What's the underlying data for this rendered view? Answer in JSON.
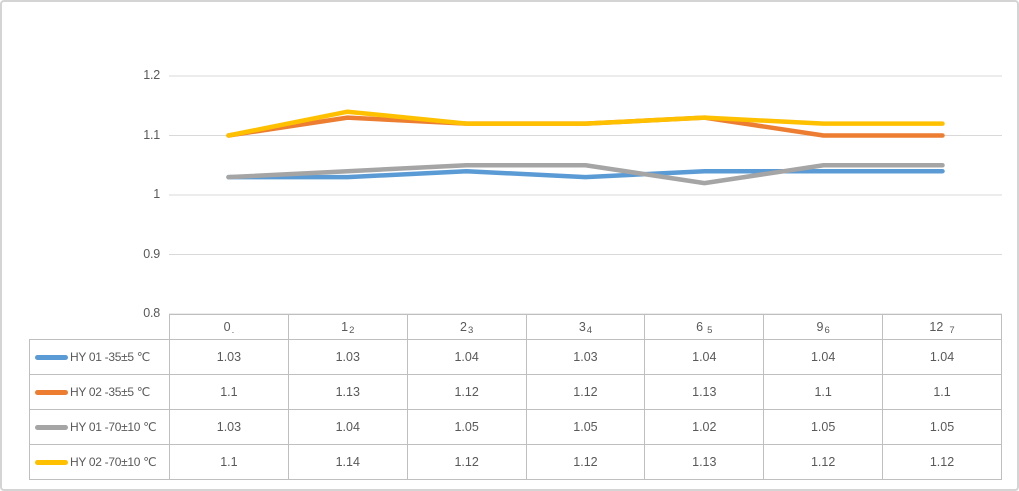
{
  "chart_data": {
    "type": "line",
    "title": "",
    "xlabel": "",
    "ylabel": "",
    "categories": [
      "0",
      "1",
      "2",
      "3",
      "6",
      "9",
      "12"
    ],
    "series": [
      {
        "name": "HY 01 -35±5 ℃",
        "color": "#5B9BD5",
        "values": [
          1.03,
          1.03,
          1.04,
          1.03,
          1.04,
          1.04,
          1.04
        ]
      },
      {
        "name": "HY 02 -35±5 ℃",
        "color": "#ED7D31",
        "values": [
          1.1,
          1.13,
          1.12,
          1.12,
          1.13,
          1.1,
          1.1
        ]
      },
      {
        "name": "HY 01 -70±10 ℃",
        "color": "#A5A5A5",
        "values": [
          1.03,
          1.04,
          1.05,
          1.05,
          1.02,
          1.05,
          1.05
        ]
      },
      {
        "name": "HY 02 -70±10 ℃",
        "color": "#FFC000",
        "values": [
          1.1,
          1.14,
          1.12,
          1.12,
          1.13,
          1.12,
          1.12
        ]
      }
    ],
    "y_axis": {
      "min": 0.8,
      "max": 1.2,
      "ticks": [
        {
          "label": "1.2",
          "value": 1.2
        },
        {
          "label": "1.1",
          "value": 1.1
        },
        {
          "label": "1",
          "value": 1.0
        },
        {
          "label": "0.9",
          "value": 0.9
        },
        {
          "label": "0.8",
          "value": 0.8
        }
      ]
    },
    "grid": true,
    "legend_position": "data-table-left-column"
  },
  "data_table": {
    "header_cells": [
      {
        "main": "0",
        "sub": ".",
        "gap": 1
      },
      {
        "main": "1",
        "sub": "2",
        "gap": 1
      },
      {
        "main": "2",
        "sub": "3",
        "gap": 1
      },
      {
        "main": "3",
        "sub": "4",
        "gap": 1
      },
      {
        "main": "6",
        "sub": "5",
        "gap": 4
      },
      {
        "main": "9",
        "sub": "6",
        "gap": 1
      },
      {
        "main": "12",
        "sub": "7",
        "gap": 6
      }
    ],
    "display_values": [
      [
        "1.03",
        "1.03",
        "1.04",
        "1.03",
        "1.04",
        "1.04",
        "1.04"
      ],
      [
        "1.1",
        "1.13",
        "1.12",
        "1.12",
        "1.13",
        "1.1",
        "1.1"
      ],
      [
        "1.03",
        "1.04",
        "1.05",
        "1.05",
        "1.02",
        "1.05",
        "1.05"
      ],
      [
        "1.1",
        "1.14",
        "1.12",
        "1.12",
        "1.13",
        "1.12",
        "1.12"
      ]
    ]
  },
  "colors": {
    "gridline": "#D9D9D9",
    "table_border": "#BFBFBF",
    "text": "#595959",
    "frame_border": "#D4D4D4"
  }
}
